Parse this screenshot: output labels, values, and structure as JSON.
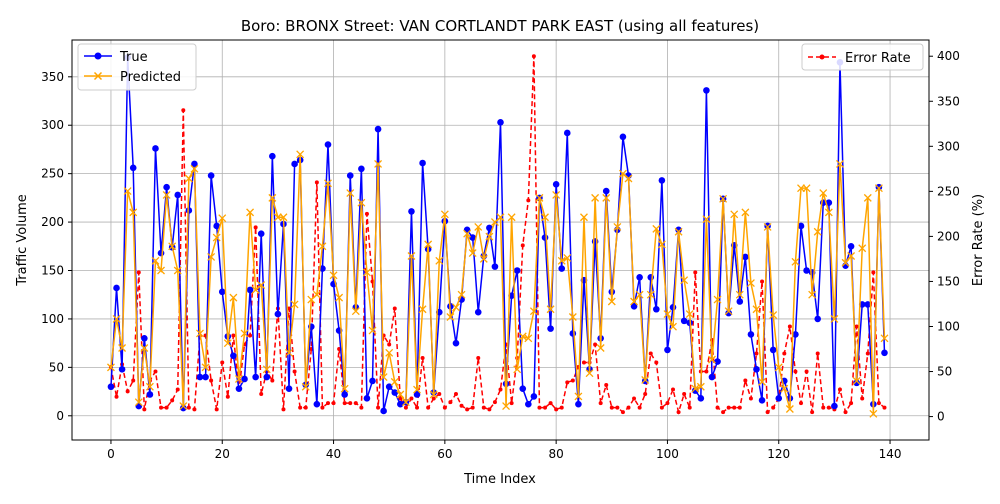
{
  "chart_data": {
    "type": "line",
    "title": "Boro: BRONX Street: VAN CORTLANDT PARK EAST (using all features)",
    "xlabel": "Time Index",
    "ylabel_left": "Traffic Volume",
    "ylabel_right": "Error Rate (%)",
    "xlim": [
      -7,
      147
    ],
    "ylim_left": [
      -25,
      388
    ],
    "ylim_right": [
      -26,
      418
    ],
    "x_ticks": [
      0,
      20,
      40,
      60,
      80,
      100,
      120,
      140
    ],
    "y_left_ticks": [
      0,
      50,
      100,
      150,
      200,
      250,
      300,
      350
    ],
    "y_right_ticks": [
      0,
      50,
      100,
      150,
      200,
      250,
      300,
      350,
      400
    ],
    "grid": true,
    "legend_left": {
      "placement": "upper-left",
      "entries": [
        "True",
        "Predicted"
      ]
    },
    "legend_right": {
      "placement": "upper-right",
      "entries": [
        "Error Rate"
      ]
    },
    "colors": {
      "true": "#0000ff",
      "predicted": "#ffa500",
      "error": "#ff0000"
    },
    "series": [
      {
        "name": "True",
        "axis": "left",
        "style": "solid-circle",
        "values": [
          30,
          132,
          48,
          370,
          256,
          10,
          80,
          22,
          276,
          168,
          236,
          174,
          228,
          8,
          212,
          260,
          40,
          40,
          248,
          196,
          128,
          82,
          62,
          28,
          38,
          130,
          40,
          188,
          40,
          268,
          105,
          198,
          28,
          260,
          264,
          32,
          92,
          12,
          152,
          280,
          136,
          88,
          22,
          248,
          112,
          255,
          18,
          36,
          296,
          5,
          30,
          24,
          12,
          14,
          211,
          22,
          261,
          172,
          24,
          107,
          201,
          113,
          75,
          120,
          192,
          184,
          107,
          165,
          194,
          154,
          303,
          33,
          124,
          150,
          28,
          12,
          20,
          225,
          184,
          90,
          239,
          152,
          292,
          85,
          12,
          140,
          48,
          180,
          80,
          232,
          128,
          192,
          288,
          248,
          113,
          143,
          36,
          143,
          110,
          243,
          68,
          112,
          192,
          98,
          96,
          26,
          18,
          336,
          40,
          56,
          224,
          106,
          176,
          118,
          164,
          84,
          48,
          16,
          196,
          68,
          18,
          36,
          18,
          84,
          196,
          150,
          148,
          100,
          220,
          220,
          10,
          365,
          155,
          175,
          34,
          115,
          115,
          12,
          236,
          65
        ]
      },
      {
        "name": "Predicted",
        "axis": "left",
        "style": "x-marker",
        "values": [
          50,
          100,
          70,
          232,
          210,
          14,
          70,
          30,
          160,
          150,
          228,
          175,
          150,
          10,
          245,
          255,
          85,
          50,
          164,
          184,
          204,
          75,
          122,
          38,
          85,
          210,
          130,
          135,
          48,
          225,
          205,
          205,
          65,
          115,
          270,
          30,
          120,
          125,
          175,
          240,
          145,
          122,
          28,
          230,
          108,
          220,
          148,
          88,
          260,
          40,
          65,
          35,
          22,
          14,
          165,
          27,
          110,
          177,
          22,
          160,
          208,
          102,
          112,
          125,
          188,
          168,
          195,
          162,
          185,
          200,
          205,
          10,
          205,
          48,
          82,
          80,
          108,
          225,
          205,
          110,
          228,
          160,
          163,
          102,
          20,
          205,
          44,
          225,
          70,
          225,
          118,
          195,
          250,
          245,
          118,
          125,
          37,
          125,
          193,
          177,
          105,
          92,
          190,
          140,
          105,
          28,
          30,
          203,
          58,
          120,
          224,
          108,
          208,
          125,
          210,
          137,
          110,
          35,
          195,
          104,
          50,
          28,
          7,
          159,
          235,
          235,
          125,
          190,
          230,
          210,
          100,
          260,
          158,
          165,
          36,
          173,
          225,
          2,
          235,
          80
        ]
      },
      {
        "name": "Error Rate",
        "axis": "right",
        "style": "dashed-dot",
        "values": [
          55,
          22,
          58,
          28,
          40,
          160,
          8,
          40,
          50,
          10,
          10,
          18,
          30,
          340,
          10,
          8,
          90,
          90,
          40,
          8,
          60,
          22,
          90,
          30,
          80,
          90,
          210,
          25,
          50,
          40,
          120,
          8,
          120,
          50,
          10,
          10,
          75,
          260,
          10,
          15,
          15,
          75,
          15,
          15,
          15,
          10,
          225,
          150,
          10,
          90,
          80,
          120,
          20,
          10,
          20,
          10,
          65,
          10,
          20,
          25,
          10,
          16,
          25,
          12,
          8,
          10,
          65,
          10,
          8,
          16,
          30,
          80,
          15,
          65,
          190,
          240,
          400,
          10,
          10,
          15,
          8,
          10,
          38,
          40,
          55,
          60,
          60,
          80,
          15,
          35,
          10,
          10,
          5,
          10,
          20,
          10,
          25,
          70,
          60,
          10,
          15,
          30,
          5,
          25,
          10,
          160,
          50,
          50,
          85,
          10,
          5,
          10,
          10,
          10,
          40,
          20,
          70,
          150,
          5,
          10,
          20,
          70,
          100,
          50,
          15,
          50,
          5,
          70,
          10,
          10,
          8,
          30,
          5,
          15,
          100,
          20,
          70,
          160,
          15,
          10
        ]
      }
    ]
  }
}
